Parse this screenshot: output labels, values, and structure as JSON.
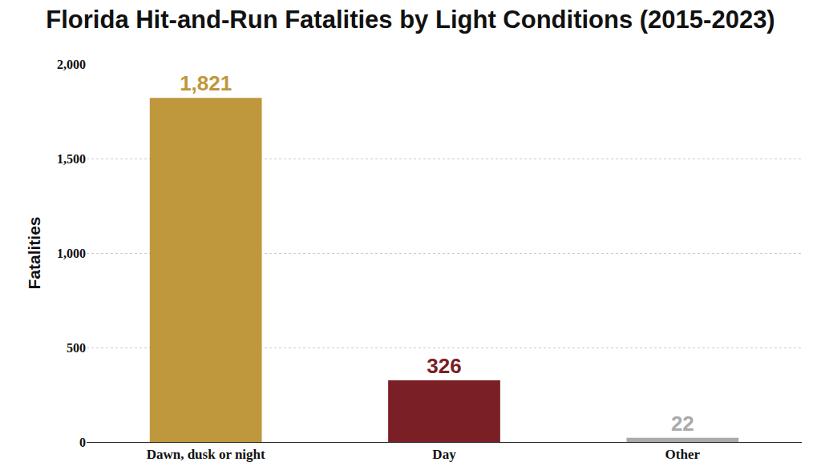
{
  "chart_data": {
    "type": "bar",
    "title": "Florida Hit-and-Run Fatalities by Light Conditions (2015-2023)",
    "y_label": "Fatalities",
    "categories": [
      "Dawn, dusk or night",
      "Day",
      "Other"
    ],
    "values": [
      1821,
      326,
      22
    ],
    "value_labels": [
      "1,821",
      "326",
      "22"
    ],
    "colors": [
      "#bf973c",
      "#7a1f25",
      "#aaaaaa"
    ],
    "ylim": [
      0,
      2000
    ],
    "yticks": [
      0,
      500,
      {
        "value": 1000,
        "label": "1,000"
      },
      {
        "value": 1500,
        "label": "1,500"
      },
      {
        "value": 2000,
        "label": "2,000"
      }
    ],
    "grid": true,
    "data_labels": true
  }
}
